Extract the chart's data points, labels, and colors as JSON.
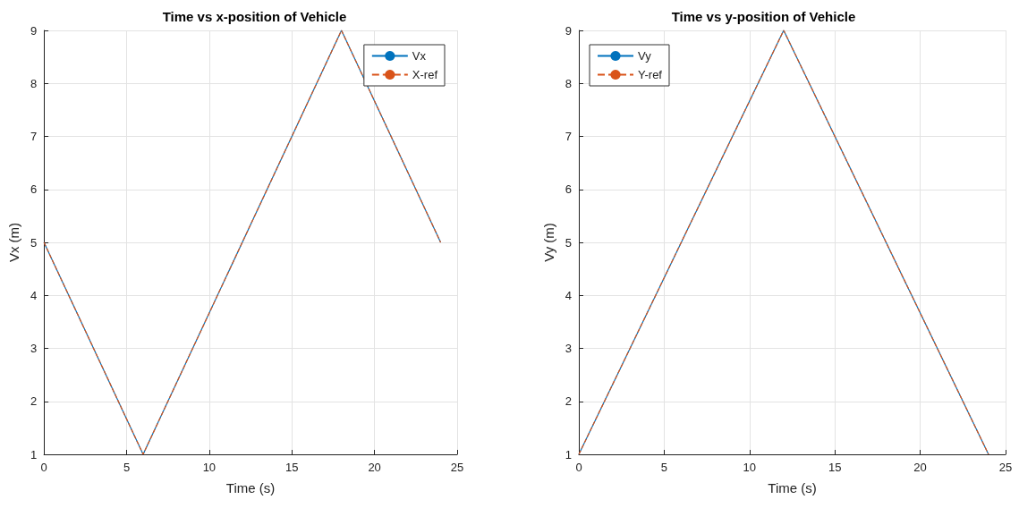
{
  "chart_data": [
    {
      "type": "line",
      "title": "Time vs x-position of Vehicle",
      "xlabel": "Time (s)",
      "ylabel": "Vx (m)",
      "xlim": [
        0,
        25
      ],
      "xticks": [
        0,
        5,
        10,
        15,
        20,
        25
      ],
      "ylim": [
        1,
        9
      ],
      "yticks": [
        1,
        2,
        3,
        4,
        5,
        6,
        7,
        8,
        9
      ],
      "grid": true,
      "legend": "top right",
      "marker": "none",
      "series": [
        {
          "name": "Vx",
          "color": "#0072bd",
          "line_style": "solid",
          "x": [
            0,
            6,
            18,
            24
          ],
          "values": [
            5,
            1,
            9,
            5
          ]
        },
        {
          "name": "X-ref",
          "color": "#d95319",
          "line_style": "dashed",
          "x": [
            0,
            6,
            18,
            24
          ],
          "values": [
            5,
            1,
            9,
            5
          ]
        }
      ]
    },
    {
      "type": "line",
      "title": "Time vs y-position of Vehicle",
      "xlabel": "Time (s)",
      "ylabel": "Vy (m)",
      "xlim": [
        0,
        25
      ],
      "xticks": [
        0,
        5,
        10,
        15,
        20,
        25
      ],
      "ylim": [
        1,
        9
      ],
      "yticks": [
        1,
        2,
        3,
        4,
        5,
        6,
        7,
        8,
        9
      ],
      "grid": true,
      "legend": "top left",
      "marker": "none",
      "series": [
        {
          "name": "Vy",
          "color": "#0072bd",
          "line_style": "solid",
          "x": [
            0,
            12,
            24
          ],
          "values": [
            1,
            9,
            1
          ]
        },
        {
          "name": "Y-ref",
          "color": "#d95319",
          "line_style": "dashed",
          "x": [
            0,
            12,
            24
          ],
          "values": [
            1,
            9,
            1
          ]
        }
      ]
    }
  ]
}
